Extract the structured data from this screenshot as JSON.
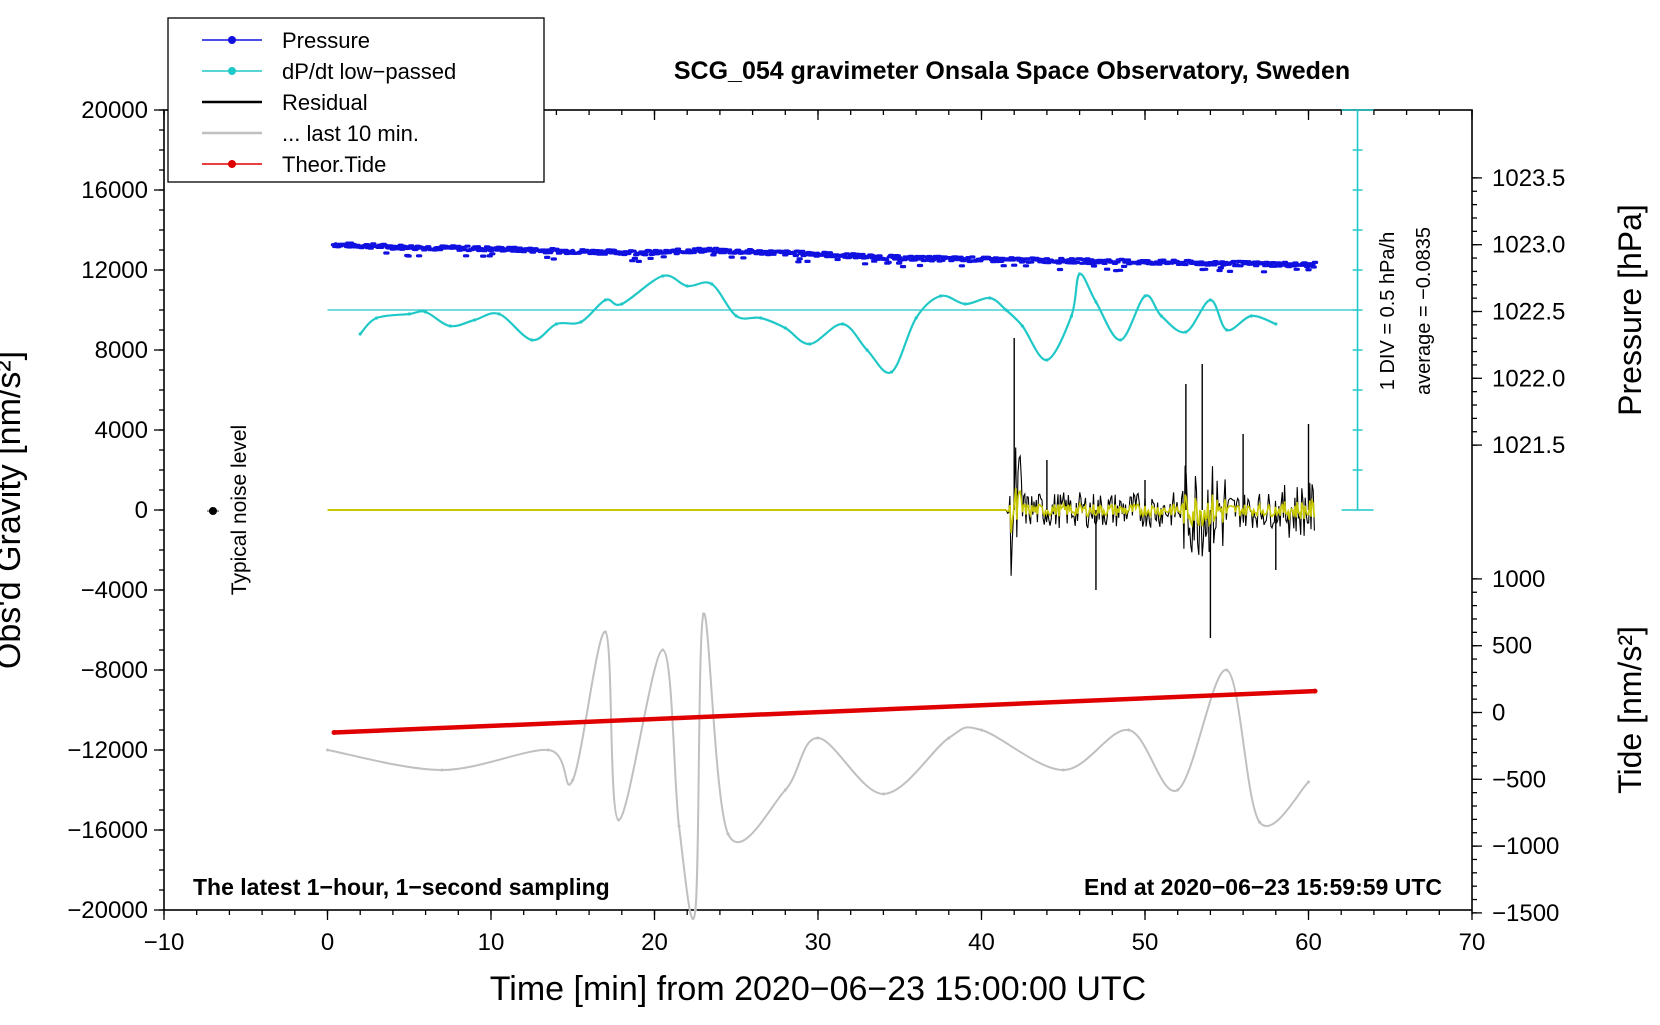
{
  "chart_data": {
    "type": "line",
    "title": "SCG_054 gravimeter Onsala Space Observatory, Sweden",
    "xlabel": "Time [min] from 2020−06−23 15:00:00 UTC",
    "ylabel_left": "Obs'd Gravity [nm/s²]",
    "ylabel_right_pressure": "Pressure [hPa]",
    "ylabel_right_tide": "Tide [nm/s²]",
    "xlim": [
      -10,
      70
    ],
    "ylim_gravity": [
      -20000,
      20000
    ],
    "x_ticks": [
      "−10",
      "0",
      "10",
      "20",
      "30",
      "40",
      "50",
      "60",
      "70"
    ],
    "y_ticks_gravity": [
      "20000",
      "16000",
      "12000",
      "8000",
      "4000",
      "0",
      "−4000",
      "−8000",
      "−12000",
      "−16000",
      "−20000"
    ],
    "y_ticks_pressure": [
      "1023.5",
      "1023.0",
      "1022.5",
      "1022.0",
      "1021.5"
    ],
    "y_ticks_tide": [
      "1000",
      "500",
      "0",
      "−500",
      "−1000",
      "−1500"
    ],
    "legend": {
      "position": "top-left",
      "entries": [
        {
          "label": "Pressure",
          "color": "#1010e0",
          "marker": "dot"
        },
        {
          "label": "dP/dt low−passed",
          "color": "#20c8c8",
          "marker": "dot"
        },
        {
          "label": "Residual",
          "color": "#000000",
          "marker": "none"
        },
        {
          "label": "... last 10 min.",
          "color": "#c0c0c0",
          "marker": "none"
        },
        {
          "label": "Theor.Tide",
          "color": "#e00000",
          "marker": "dot"
        }
      ]
    },
    "annotations": {
      "noise_label": "Typical noise level",
      "scale_div": "1 DIV = 0.5 hPa/h",
      "scale_avg": "average = −0.0835",
      "bottom_left": "The latest 1−hour, 1−second sampling",
      "bottom_right": "End at 2020−06−23 15:59:59 UTC"
    },
    "colors": {
      "pressure": "#1010e0",
      "dpdt": "#20c8c8",
      "residual": "#000000",
      "residual_filtered": "#c8c800",
      "last10": "#c0c0c0",
      "tide": "#e00000"
    },
    "series": [
      {
        "name": "Pressure",
        "axis": "pressure_hPa",
        "x": [
          0.5,
          5,
          10,
          15,
          20,
          23,
          25,
          30,
          35,
          40,
          45,
          50,
          55,
          60
        ],
        "values": [
          1023.0,
          1022.98,
          1022.97,
          1022.95,
          1022.94,
          1022.96,
          1022.95,
          1022.93,
          1022.9,
          1022.89,
          1022.88,
          1022.87,
          1022.86,
          1022.85
        ]
      },
      {
        "name": "dP/dt low−passed",
        "axis": "gravity_plot_units",
        "x": [
          2,
          3,
          5,
          6,
          7.5,
          9,
          10.5,
          12.5,
          14,
          15.5,
          17,
          18,
          20.5,
          22,
          23.5,
          25,
          26.5,
          28,
          29.5,
          31.5,
          33,
          34.5,
          36,
          37.5,
          39,
          40.5,
          41.5,
          42.5,
          44,
          45.5,
          46,
          47,
          48.5,
          50,
          51,
          52.5,
          54,
          55,
          56.5,
          58
        ],
        "values": [
          8800,
          9600,
          9800,
          9900,
          9200,
          9500,
          9800,
          8500,
          9300,
          9400,
          10500,
          10300,
          11700,
          11200,
          11300,
          9700,
          9600,
          9100,
          8300,
          9300,
          8000,
          6900,
          9600,
          10700,
          10300,
          10600,
          10000,
          9200,
          7500,
          9700,
          11800,
          10400,
          8500,
          10700,
          9700,
          8900,
          10500,
          9000,
          9700,
          9300
        ]
      },
      {
        "name": "Residual",
        "axis": "gravity_nm_s2",
        "x": [
          0,
          41.5,
          42,
          44,
          47,
          50,
          52.5,
          53.5,
          54,
          56,
          58,
          60
        ],
        "values": [
          0,
          0,
          8600,
          2500,
          -4000,
          1500,
          6300,
          7300,
          -6400,
          3800,
          -3000,
          4300
        ]
      },
      {
        "name": "... last 10 min.",
        "axis": "tide_plot_units",
        "x": [
          0,
          7,
          13.5,
          15,
          17,
          17.8,
          20.5,
          21.5,
          22.5,
          23,
          24.5,
          28,
          30,
          34,
          38,
          40,
          45,
          49,
          52,
          55,
          57,
          60
        ],
        "values": [
          -12000,
          -13000,
          -12000,
          -13500,
          -6100,
          -15500,
          -7000,
          -15800,
          -20000,
          -5200,
          -16200,
          -14000,
          -11400,
          -14200,
          -11400,
          -11000,
          -13000,
          -11000,
          -14000,
          -8000,
          -15600,
          -13600
        ]
      },
      {
        "name": "Theor.Tide",
        "axis": "tide_nm_s2",
        "x": [
          0.4,
          60.4
        ],
        "values": [
          -150,
          160
        ]
      }
    ]
  }
}
